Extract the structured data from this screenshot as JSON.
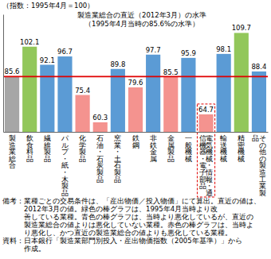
{
  "chart_data": {
    "type": "bar",
    "y_label": "（指数：1995年4月＝100）",
    "categories": [
      "製造業総合",
      "飲食料品",
      "繊維製品",
      "パルプ・紙・木製品",
      "化学製品",
      "石油・石炭製品",
      "窯業・土石製品",
      "鉄鋼",
      "非鉄金属",
      "金属製品",
      "一般機械",
      "電気機械・情報・通信機器・電子部品",
      "輸送機械",
      "精密機械",
      "その他の製造工業製品"
    ],
    "values": [
      85.6,
      102.1,
      92.1,
      96.7,
      75.4,
      60.3,
      89.8,
      79.6,
      97.7,
      85.5,
      95.9,
      64.7,
      98.1,
      109.7,
      88.4
    ],
    "colors": [
      "#a6a6a6",
      "#92c75a",
      "#5b9bd5",
      "#5b9bd5",
      "#f4938f",
      "#f4938f",
      "#5b9bd5",
      "#f4938f",
      "#5b9bd5",
      "#f4938f",
      "#5b9bd5",
      "#f4938f",
      "#5b9bd5",
      "#92c75a",
      "#5b9bd5"
    ],
    "ylim": [
      55,
      120
    ],
    "tick_labels": "x",
    "data_labels": true,
    "reference_line": {
      "value": 85.6,
      "color": "#e00000",
      "label": [
        "製造業総合の直近（2012年3月）の水準",
        "（1995年4月当時の85.6%の水準）"
      ]
    },
    "notes": [
      {
        "label": "備考：",
        "lines": [
          "業種ごとの交易条件は、「産出物価／投入物価」にて算出。直近の値は、",
          "2012年3月の値。緑色の棒グラフは、1995年4月当時より改",
          "善している業種。青色の棒グラフは、当時より悪化しているが、直近の",
          "製造業総合の値よりは悪化していない業種。赤色の棒グラフは、当時よ",
          "り悪化し、かつ直近の製造業総合の値よりも悪化している業種。"
        ]
      },
      {
        "label": "資料：",
        "lines": [
          "日本銀行「製造業部門別投入・産出物価指数（2005年基準）」から",
          "作成。"
        ]
      }
    ]
  }
}
